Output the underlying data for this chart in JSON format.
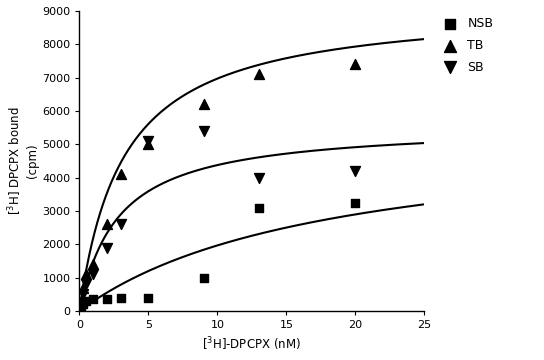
{
  "title": "",
  "xlabel": "[$^{3}$H]-DPCPX (nM)",
  "ylabel": "[$^{3}$H] DPCPX bound\n(cpm)",
  "xlim": [
    0,
    25
  ],
  "ylim": [
    0,
    9000
  ],
  "yticks": [
    0,
    1000,
    2000,
    3000,
    4000,
    5000,
    6000,
    7000,
    8000,
    9000
  ],
  "xticks": [
    0,
    5,
    10,
    15,
    20,
    25
  ],
  "NSB_x": [
    0.1,
    0.25,
    0.5,
    1.0,
    2.0,
    3.0,
    5.0,
    9.0,
    13.0,
    20.0
  ],
  "NSB_y": [
    150,
    200,
    300,
    350,
    350,
    400,
    400,
    1000,
    3100,
    3250
  ],
  "TB_x": [
    0.1,
    0.25,
    0.5,
    1.0,
    2.0,
    3.0,
    5.0,
    9.0,
    13.0,
    20.0
  ],
  "TB_y": [
    300,
    700,
    1100,
    1400,
    2600,
    4100,
    5000,
    6200,
    7100,
    7400
  ],
  "SB_x": [
    0.1,
    0.25,
    0.5,
    1.0,
    2.0,
    3.0,
    5.0,
    9.0,
    13.0,
    20.0
  ],
  "SB_y": [
    200,
    500,
    800,
    1100,
    1900,
    2600,
    5100,
    5400,
    4000,
    4200
  ],
  "NSB_Bmax": 5500,
  "NSB_Kd": 18.0,
  "TB_Bmax": 9200,
  "TB_Kd": 3.2,
  "SB_Bmax": 5600,
  "SB_Kd": 2.8,
  "line_color": "#000000",
  "marker_color": "#000000",
  "bg_color": "#ffffff",
  "legend_labels": [
    "NSB",
    "TB",
    "SB"
  ],
  "legend_markers": [
    "s",
    "^",
    "v"
  ],
  "figwidth": 5.44,
  "figheight": 3.6,
  "dpi": 100
}
